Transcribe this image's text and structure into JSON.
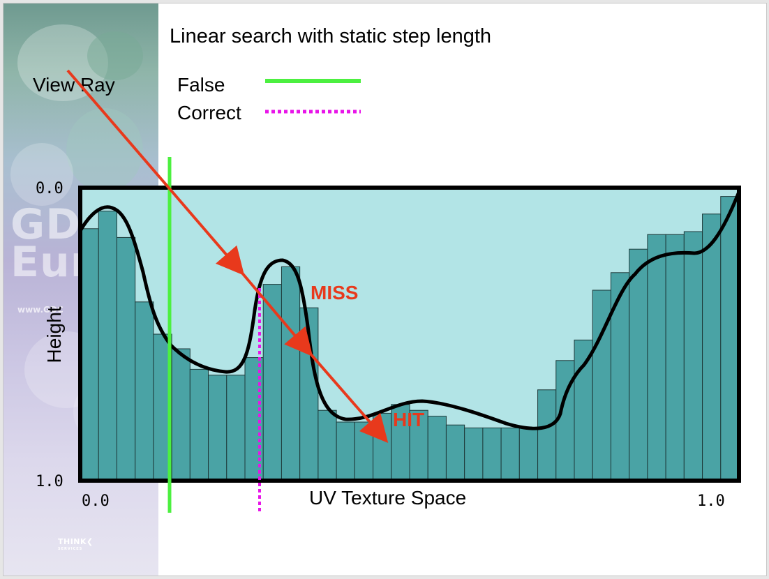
{
  "slide": {
    "title": "Linear search with static step length",
    "view_ray_label": "View Ray",
    "legend": [
      {
        "label": "False",
        "color": "#4cf040",
        "style": "solid"
      },
      {
        "label": "Correct",
        "color": "#e815e8",
        "style": "dotted"
      }
    ],
    "miss_label": "MISS",
    "hit_label": "HIT",
    "sidebar_logo_text": "GDC\nEurope",
    "sidebar_url": "www.GDC",
    "footer_logo": "THINK",
    "footer_logo_sub": "SERVICES"
  },
  "chart_data": {
    "type": "bar",
    "xlabel": "UV Texture Space",
    "ylabel": "Height",
    "x_ticks": [
      "0.0",
      "1.0"
    ],
    "y_ticks": [
      "0.0",
      "1.0"
    ],
    "xlim": [
      0,
      1
    ],
    "ylim_inverted": [
      0.0,
      1.0
    ],
    "bar_depths": [
      0.14,
      0.08,
      0.17,
      0.39,
      0.5,
      0.55,
      0.62,
      0.64,
      0.64,
      0.58,
      0.33,
      0.27,
      0.41,
      0.76,
      0.8,
      0.8,
      0.77,
      0.74,
      0.76,
      0.78,
      0.81,
      0.82,
      0.82,
      0.82,
      0.82,
      0.69,
      0.59,
      0.52,
      0.35,
      0.29,
      0.21,
      0.16,
      0.16,
      0.15,
      0.09,
      0.03
    ],
    "colors": {
      "fill": "#b2e4e6",
      "bars": "#4aa3a5",
      "ray": "#e8391c",
      "curve": "#000000"
    }
  }
}
